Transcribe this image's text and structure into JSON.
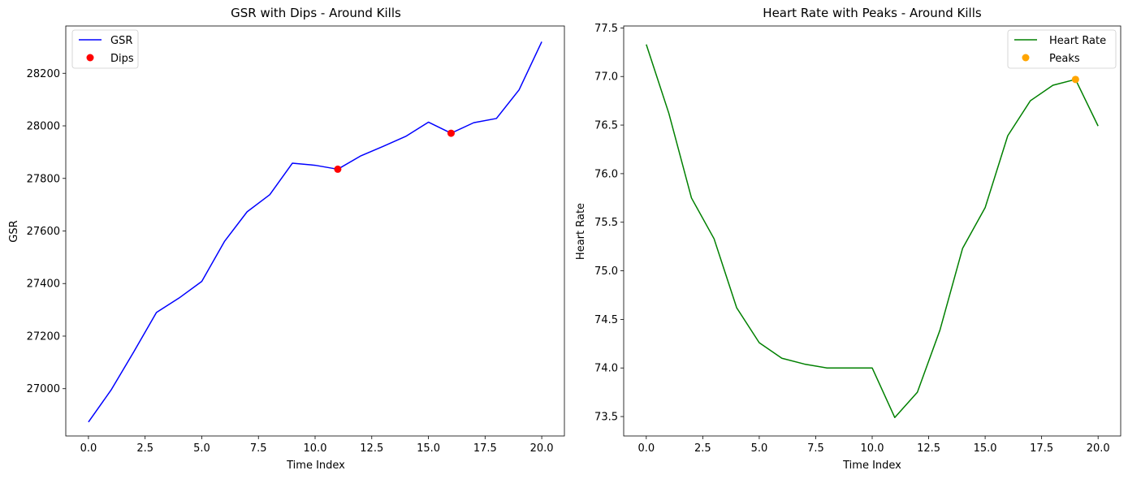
{
  "chart_data": [
    {
      "type": "line",
      "title": "GSR with Dips - Around Kills",
      "xlabel": "Time Index",
      "ylabel": "GSR",
      "xlim": [
        -1.0,
        21.0
      ],
      "ylim": [
        26820,
        28380
      ],
      "xticks": [
        0.0,
        2.5,
        5.0,
        7.5,
        10.0,
        12.5,
        15.0,
        17.5,
        20.0
      ],
      "xtick_labels": [
        "0.0",
        "2.5",
        "5.0",
        "7.5",
        "10.0",
        "12.5",
        "15.0",
        "17.5",
        "20.0"
      ],
      "yticks": [
        27000,
        27200,
        27400,
        27600,
        27800,
        28000,
        28200
      ],
      "ytick_labels": [
        "27000",
        "27200",
        "27400",
        "27600",
        "27800",
        "28000",
        "28200"
      ],
      "grid": false,
      "legend": "top-left",
      "series": [
        {
          "name": "GSR",
          "kind": "line",
          "color": "#0000ff",
          "x": [
            0,
            1,
            2,
            3,
            4,
            5,
            6,
            7,
            8,
            9,
            10,
            11,
            12,
            13,
            14,
            15,
            16,
            17,
            18,
            19,
            20
          ],
          "y": [
            26873,
            26995,
            27140,
            27290,
            27345,
            27408,
            27560,
            27673,
            27738,
            27858,
            27850,
            27835,
            27885,
            27922,
            27960,
            28014,
            27972,
            28012,
            28028,
            28137,
            28320
          ]
        },
        {
          "name": "Dips",
          "kind": "scatter",
          "color": "#ff0000",
          "x": [
            11,
            16
          ],
          "y": [
            27835,
            27972
          ]
        }
      ]
    },
    {
      "type": "line",
      "title": "Heart Rate with Peaks - Around Kills",
      "xlabel": "Time Index",
      "ylabel": "Heart Rate",
      "xlim": [
        -1.0,
        21.0
      ],
      "ylim": [
        73.3,
        77.52
      ],
      "xticks": [
        0.0,
        2.5,
        5.0,
        7.5,
        10.0,
        12.5,
        15.0,
        17.5,
        20.0
      ],
      "xtick_labels": [
        "0.0",
        "2.5",
        "5.0",
        "7.5",
        "10.0",
        "12.5",
        "15.0",
        "17.5",
        "20.0"
      ],
      "yticks": [
        73.5,
        74.0,
        74.5,
        75.0,
        75.5,
        76.0,
        76.5,
        77.0,
        77.5
      ],
      "ytick_labels": [
        "73.5",
        "74.0",
        "74.5",
        "75.0",
        "75.5",
        "76.0",
        "76.5",
        "77.0",
        "77.5"
      ],
      "grid": false,
      "legend": "top-right",
      "series": [
        {
          "name": "Heart Rate",
          "kind": "line",
          "color": "#008000",
          "x": [
            0,
            1,
            2,
            3,
            4,
            5,
            6,
            7,
            8,
            9,
            10,
            11,
            12,
            13,
            14,
            15,
            16,
            17,
            18,
            19,
            20
          ],
          "y": [
            77.33,
            76.62,
            75.75,
            75.33,
            74.62,
            74.26,
            74.1,
            74.04,
            74.0,
            74.0,
            74.0,
            73.49,
            73.75,
            74.39,
            75.23,
            75.65,
            76.39,
            76.75,
            76.91,
            76.97,
            76.49
          ]
        },
        {
          "name": "Peaks",
          "kind": "scatter",
          "color": "#ffa500",
          "x": [
            19
          ],
          "y": [
            76.97
          ]
        }
      ]
    }
  ]
}
